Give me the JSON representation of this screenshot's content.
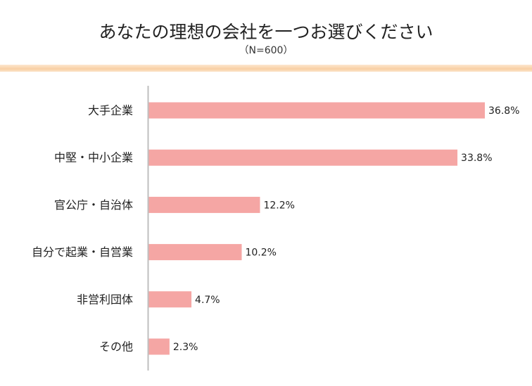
{
  "chart_data": {
    "type": "bar",
    "orientation": "horizontal",
    "title": "あなたの理想の会社を一つお選びください",
    "subtitle": "（N=600）",
    "categories": [
      "大手企業",
      "中堅・中小企業",
      "官公庁・自治体",
      "自分で起業・自営業",
      "非営利団体",
      "その他"
    ],
    "values": [
      36.8,
      33.8,
      12.2,
      10.2,
      4.7,
      2.3
    ],
    "value_labels": [
      "36.8%",
      "33.8%",
      "12.2%",
      "10.2%",
      "4.7%",
      "2.3%"
    ],
    "unit": "%",
    "bar_color": "#f5a6a4",
    "accent_color": "#f9cfa3",
    "grid": false,
    "legend": "none"
  }
}
